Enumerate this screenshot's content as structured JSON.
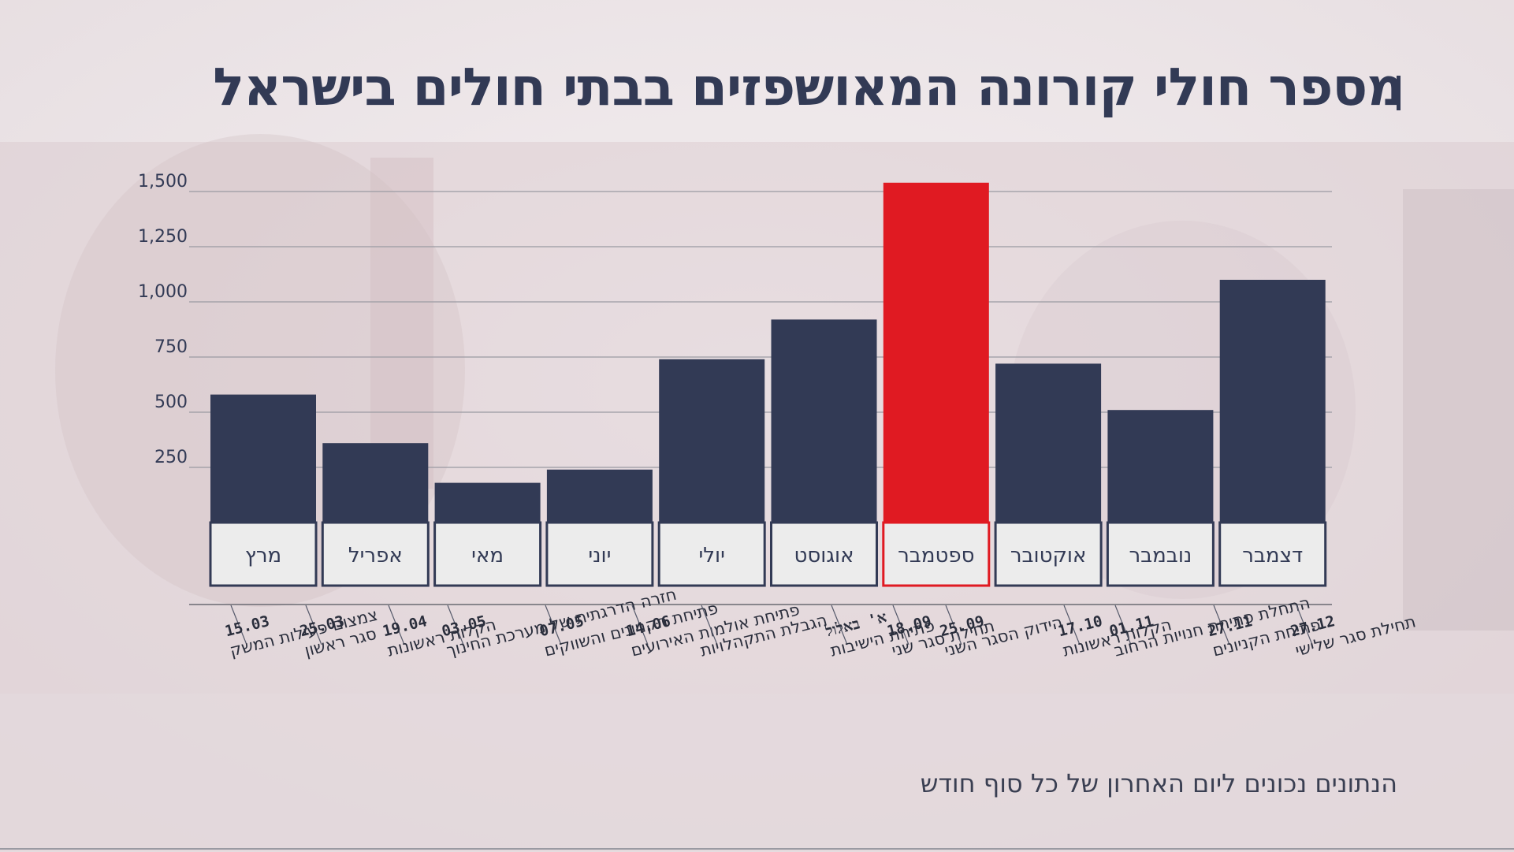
{
  "title": "מספר חולי קורונה המאושפזים בבתי חולים בישראל",
  "footnote": "הנתונים נכונים ליום האחרון של כל סוף חודש",
  "colors": {
    "bar": "#323a55",
    "highlight": "#e01a22",
    "label_box": "#ececec",
    "text": "#323a55",
    "grid": "#9a9aa2"
  },
  "chart_data": {
    "type": "bar",
    "title": "מספר חולי קורונה המאושפזים בבתי חולים בישראל",
    "categories": [
      "מרץ",
      "אפריל",
      "מאי",
      "יוני",
      "יולי",
      "אוגוסט",
      "ספטמבר",
      "אוקטובר",
      "נובמבר",
      "דצמבר"
    ],
    "values": [
      580,
      360,
      180,
      240,
      740,
      920,
      1540,
      720,
      510,
      1100
    ],
    "highlight_category": "ספטמבר",
    "ylim": [
      0,
      1500
    ],
    "yticks": [
      250,
      500,
      750,
      1000,
      1250,
      1500
    ],
    "ytick_labels": [
      "250",
      "500",
      "750",
      "1,000",
      "1,250",
      "1,500"
    ],
    "grid": true,
    "xlabel": "",
    "ylabel": "",
    "annotations": [
      {
        "date": "15.03",
        "text": "צמצום פעילות המשק"
      },
      {
        "date": "25.03",
        "text": "סגר ראשון"
      },
      {
        "date": "19.04",
        "text": "הקלות ראשונות"
      },
      {
        "date": "03.05",
        "text": "חזרה הדרגתית של מערכת החינוך"
      },
      {
        "date": "07.05",
        "text": "פתיחת הקניונים והשווקים"
      },
      {
        "date": "14.06",
        "text": "פתיחת אולמות האירועים"
      },
      {
        "date": "",
        "text": "הגבלת התקהלויות"
      },
      {
        "date": "א' באלול",
        "text": "פתיחת הישיבות"
      },
      {
        "date": "18.09",
        "text": "תחילת סגר שני"
      },
      {
        "date": "25.09",
        "text": "הידוק הסגר השני"
      },
      {
        "date": "17.10",
        "text": "הקלות ראשונות"
      },
      {
        "date": "01.11",
        "text": "התחלת פתיחת חנויות הרחוב"
      },
      {
        "date": "27.11",
        "text": "פתיחת הקניונים"
      },
      {
        "date": "27.12",
        "text": "תחילת סגר שלישי"
      }
    ]
  }
}
